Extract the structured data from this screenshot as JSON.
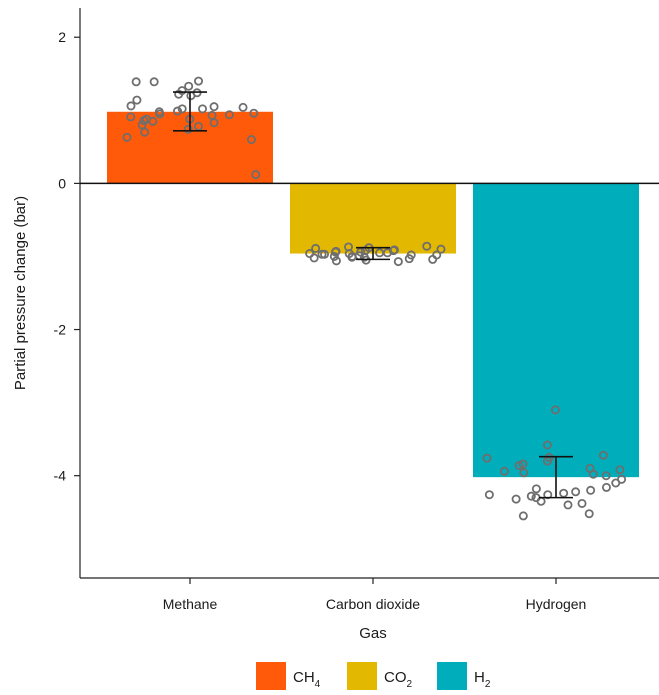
{
  "chart_data": {
    "type": "bar",
    "xlabel": "Gas",
    "ylabel": "Partial pressure change (bar)",
    "ylim": [
      -5.4,
      2.4
    ],
    "yticks": [
      2,
      0,
      -2,
      -4
    ],
    "yticklabels": [
      "2",
      "0",
      "-2",
      "-4"
    ],
    "categories": [
      "Methane",
      "Carbon dioxide",
      "Hydrogen"
    ],
    "values": [
      0.98,
      -0.96,
      -4.02
    ],
    "error_low": [
      0.72,
      -1.04,
      -4.3
    ],
    "error_high": [
      1.25,
      -0.88,
      -3.74
    ],
    "colors": [
      "#ff5a0a",
      "#e3b800",
      "#00aebb"
    ],
    "points": [
      [
        1.33,
        1.4,
        1.39,
        1.39,
        1.27,
        1.2,
        1.06,
        1.04,
        1.02,
        0.99,
        0.95,
        0.94,
        0.93,
        0.91,
        0.88,
        0.85,
        0.83,
        0.8,
        0.78,
        0.74,
        0.7,
        0.63,
        0.6,
        0.12,
        1.14,
        1.02,
        0.96,
        0.88,
        1.22,
        1.24,
        1.05,
        0.98,
        0.86
      ],
      [
        -0.9,
        -0.92,
        -0.94,
        -0.95,
        -0.96,
        -0.97,
        -0.98,
        -1.0,
        -1.01,
        -1.02,
        -1.04,
        -1.06,
        -0.86,
        -0.88,
        -0.93,
        -0.95,
        -0.99,
        -1.03,
        -0.91,
        -0.97,
        -1.0,
        -1.05,
        -0.89,
        -0.96,
        -0.94,
        -1.07,
        -0.92,
        -0.98,
        -0.87,
        -1.01
      ],
      [
        -3.1,
        -3.58,
        -3.72,
        -3.75,
        -3.8,
        -3.84,
        -3.86,
        -3.9,
        -3.94,
        -3.96,
        -3.98,
        -4.0,
        -4.05,
        -4.1,
        -4.16,
        -4.2,
        -4.22,
        -4.24,
        -4.26,
        -4.28,
        -4.3,
        -4.32,
        -4.35,
        -4.38,
        -4.52,
        -4.55,
        -3.92,
        -3.76,
        -4.18,
        -4.4,
        -4.26
      ]
    ],
    "legend": {
      "position": "bottom",
      "entries": [
        {
          "base": "CH",
          "sub": "4"
        },
        {
          "base": "CO",
          "sub": "2"
        },
        {
          "base": "H",
          "sub": "2"
        }
      ]
    },
    "grid": false
  }
}
